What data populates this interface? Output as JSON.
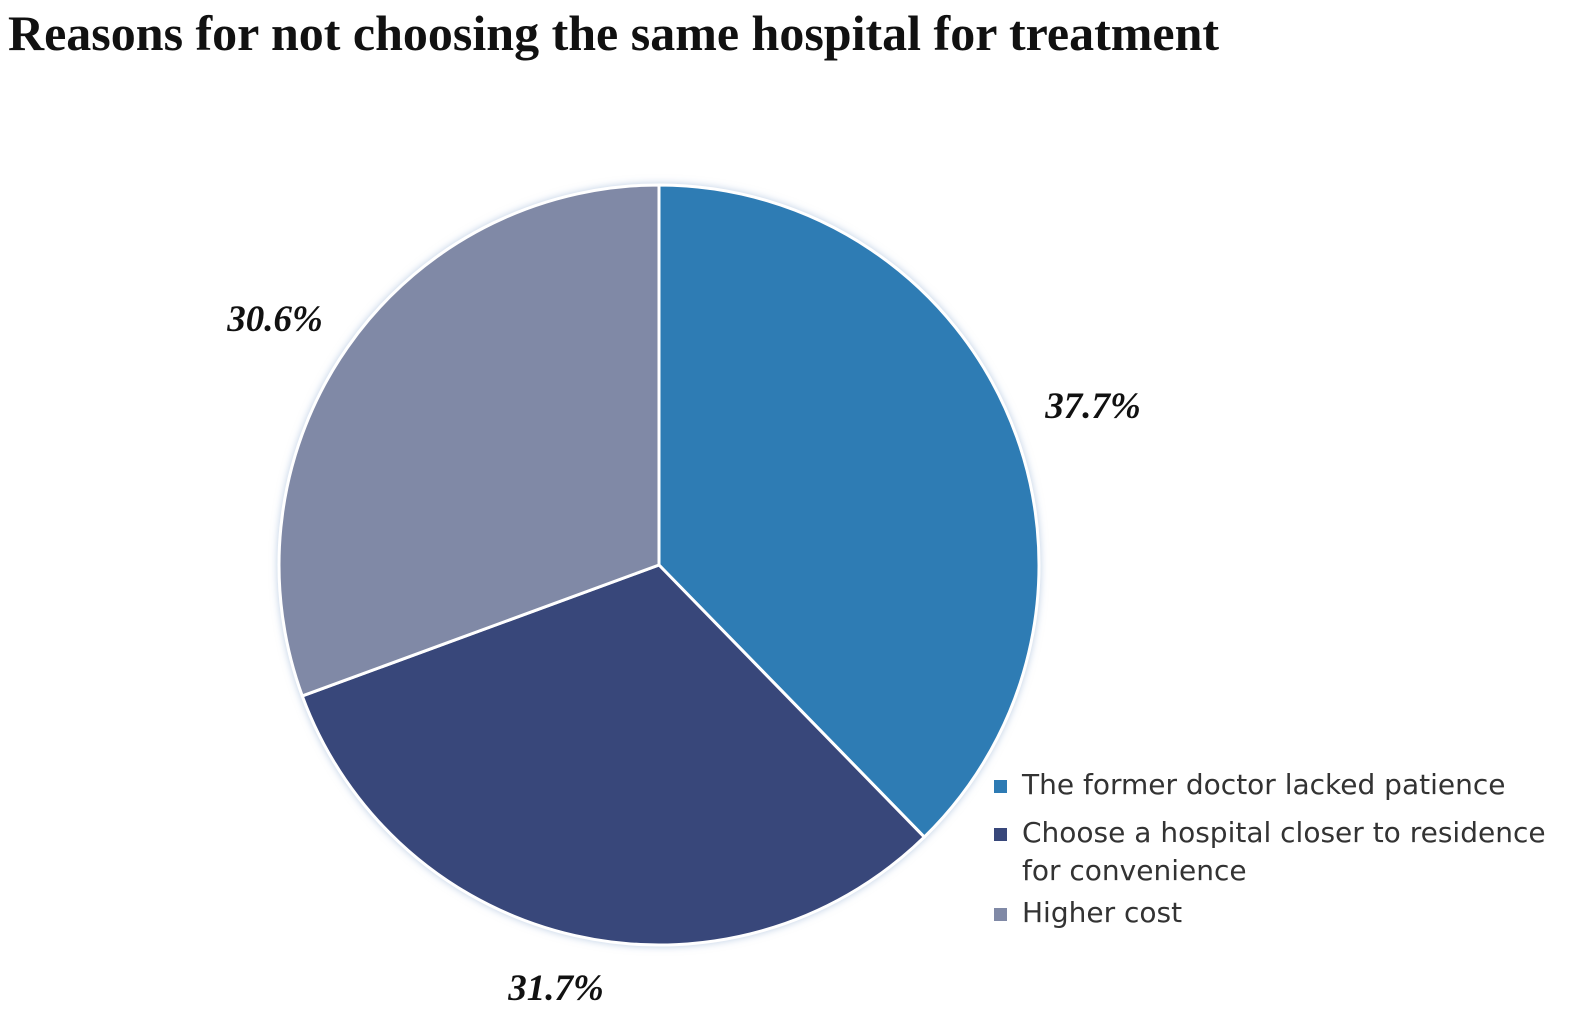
{
  "chart_data": {
    "type": "pie",
    "title": "Reasons for not choosing the same hospital for treatment",
    "categories": [
      "The former doctor lacked patience",
      "Choose a hospital closer to residence for convenience",
      "Higher cost"
    ],
    "values": [
      37.7,
      31.7,
      30.6
    ],
    "value_labels": [
      "37.7%",
      "31.7%",
      "30.6%"
    ],
    "colors": [
      "#2e7bb4",
      "#38477a",
      "#8089a6"
    ],
    "legend_placement": "bottom-right",
    "start_angle": "12 o'clock",
    "direction": "clockwise"
  }
}
